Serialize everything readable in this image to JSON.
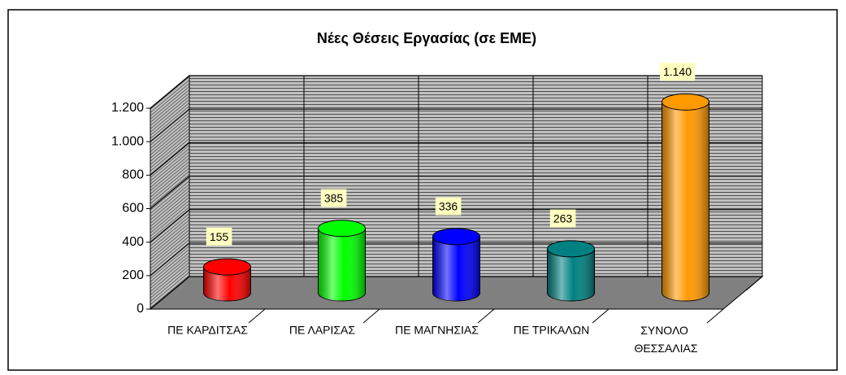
{
  "chart_data": {
    "type": "bar3d",
    "title": "Νέες Θέσεις Εργασίας (σε  ΕΜΕ)",
    "categories": [
      "ΠΕ ΚΑΡΔΙΤΣΑΣ",
      "ΠΕ ΛΑΡΙΣΑΣ",
      "ΠΕ ΜΑΓΝΗΣΙΑΣ",
      "ΠΕ ΤΡΙΚΑΛΩΝ",
      "ΣΥΝΟΛΟ ΘΕΣΣΑΛΙΑΣ"
    ],
    "values": [
      155,
      385,
      336,
      263,
      1140
    ],
    "value_labels": [
      "155",
      "385",
      "336",
      "263",
      "1.140"
    ],
    "colors": [
      "#ff0000",
      "#00ff00",
      "#0000ff",
      "#008080",
      "#ff9900"
    ],
    "ylim": [
      0,
      1200
    ],
    "yticks": [
      0,
      200,
      400,
      600,
      800,
      {
        "value": 1000,
        "label": "1.000"
      },
      {
        "value": 1200,
        "label": "1.200"
      }
    ],
    "grid": true
  }
}
